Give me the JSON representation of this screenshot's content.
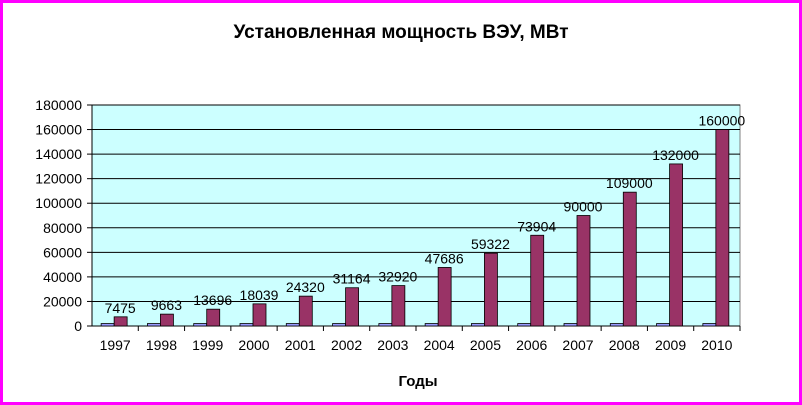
{
  "chart_data": {
    "type": "bar",
    "title": "Установленная мощность ВЭУ, МВт",
    "xlabel": "Годы",
    "ylabel": "",
    "categories": [
      "1997",
      "1998",
      "1999",
      "2000",
      "2001",
      "2002",
      "2003",
      "2004",
      "2005",
      "2006",
      "2007",
      "2008",
      "2009",
      "2010"
    ],
    "series": [
      {
        "values": [
          2000,
          2000,
          2000,
          2000,
          2000,
          2000,
          2000,
          2000,
          2000,
          2000,
          2000,
          2000,
          2000,
          2000
        ]
      },
      {
        "values": [
          7475,
          9663,
          13696,
          18039,
          24320,
          31164,
          32920,
          47686,
          59322,
          73904,
          90000,
          109000,
          132000,
          160000
        ]
      }
    ],
    "ylim": [
      0,
      180000
    ],
    "yticks": [
      0,
      20000,
      40000,
      60000,
      80000,
      100000,
      120000,
      140000,
      160000,
      180000
    ],
    "grid": true,
    "legend": "none",
    "colors": {
      "plot_bg": "#ccffff",
      "series_1": "#9999ff",
      "series_2": "#993366",
      "border": "#ff00ff"
    }
  }
}
